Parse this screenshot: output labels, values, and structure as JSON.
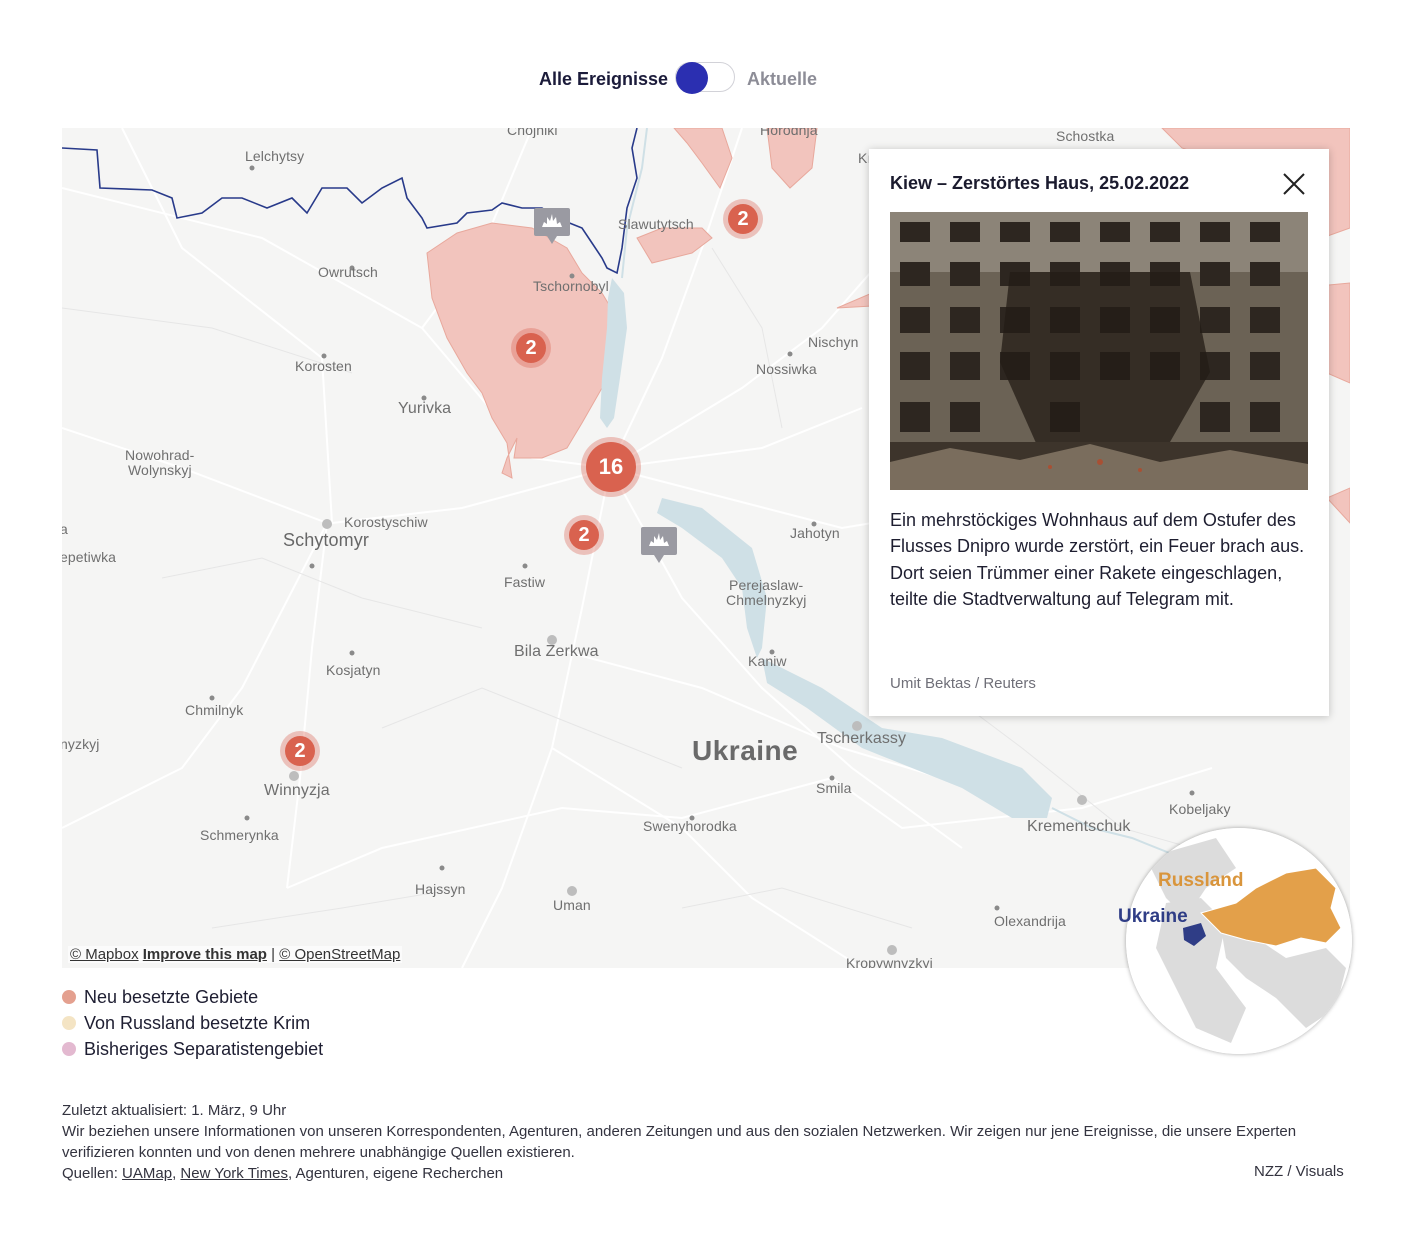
{
  "toggle": {
    "left_label": "Alle Ereignisse",
    "right_label": "Aktuelle",
    "state": "left"
  },
  "map": {
    "places": [
      {
        "name": "Chojniki"
      },
      {
        "name": "Horodnja"
      },
      {
        "name": "Schostka"
      },
      {
        "name": "Lelchytsy"
      },
      {
        "name": "Slawutytsch"
      },
      {
        "name": "Owrutsch"
      },
      {
        "name": "Tschornobyl"
      },
      {
        "name": "Nischyn"
      },
      {
        "name": "Korosten"
      },
      {
        "name": "Nossiwka"
      },
      {
        "name": "Yurivka"
      },
      {
        "name": "Nowohrad-"
      },
      {
        "name": "Wolynskyj"
      },
      {
        "name": "Korostyschiw"
      },
      {
        "name": "Schytomyr"
      },
      {
        "name": "Jahotyn"
      },
      {
        "name": "epetiwka"
      },
      {
        "name": "Fastiw"
      },
      {
        "name": "Perejaslaw-"
      },
      {
        "name": "Chmelnyzkyj"
      },
      {
        "name": "Bila Zerkwa"
      },
      {
        "name": "Kaniw"
      },
      {
        "name": "Kosjatyn"
      },
      {
        "name": "Chmilnyk"
      },
      {
        "name": "nyzkyj"
      },
      {
        "name": "Tscherkassy"
      },
      {
        "name": "Ukraine"
      },
      {
        "name": "Winnyzja"
      },
      {
        "name": "Smila"
      },
      {
        "name": "Kobeljaky"
      },
      {
        "name": "Schmerynka"
      },
      {
        "name": "Swenyhorodka"
      },
      {
        "name": "Krementschuk"
      },
      {
        "name": "Hajssyn"
      },
      {
        "name": "Uman"
      },
      {
        "name": "Olexandrija"
      },
      {
        "name": "Kropywnyzkyj"
      },
      {
        "name": "a"
      },
      {
        "name": "Kı"
      }
    ],
    "clusters": [
      "2",
      "2",
      "16",
      "2",
      "2"
    ],
    "attribution": {
      "mapbox": "© Mapbox",
      "improve": "Improve this map",
      "separator": "|",
      "osm": "© OpenStreetMap"
    }
  },
  "popup": {
    "title": "Kiew – Zerstörtes Haus, 25.02.2022",
    "text": "Ein mehrstöckiges Wohnhaus auf dem Ostufer des Flusses Dnipro wurde zerstört, ein Feuer brach aus. Dort seien Trümmer einer Rakete eingeschlagen, teilte die Stadtverwaltung auf Telegram mit.",
    "credit": "Umit Bektas / Reuters",
    "close_icon": "close-icon"
  },
  "globe": {
    "russia_label": "Russland",
    "ukraine_label": "Ukraine",
    "russia_color": "#e3a04a",
    "ukraine_color": "#2f3d86"
  },
  "legend": [
    {
      "label": "Neu besetzte Gebiete",
      "color": "#e4a08f"
    },
    {
      "label": "Von Russland besetzte Krim",
      "color": "#f4e4c4"
    },
    {
      "label": "Bisheriges Separatistengebiet",
      "color": "#e3b9d0"
    }
  ],
  "footer": {
    "updated": "Zuletzt aktualisiert: 1. März, 9 Uhr",
    "note": "Wir beziehen unsere Informationen von unseren Korrespondenten, Agenturen, anderen Zeitungen und aus den sozialen Netzwerken. Wir zeigen nur jene Ereignisse, die unsere Experten verifizieren konnten und von denen mehrere unabhängige Quellen existieren.",
    "sources_prefix": "Quellen:",
    "source_links": [
      "UAMap",
      "New York Times"
    ],
    "sources_suffix": ", Agenturen, eigene Recherchen",
    "brand": "NZZ / Visuals"
  },
  "colors": {
    "occupied": "#f2c4bd",
    "cluster": "#d9624f",
    "border": "#283a8a",
    "water": "#cfe0e6",
    "toggle_knob": "#2b2fb1"
  }
}
